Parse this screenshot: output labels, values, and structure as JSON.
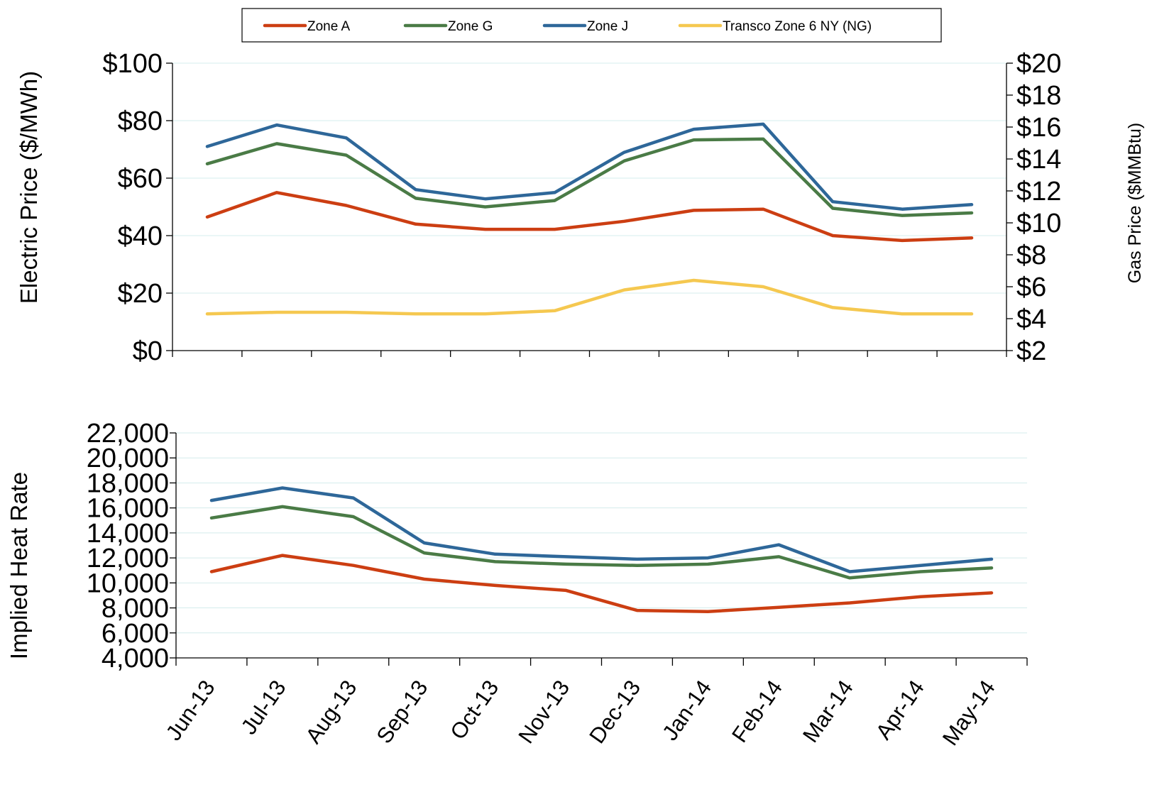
{
  "chart_data": [
    {
      "type": "line",
      "categories": [
        "Jun-13",
        "Jul-13",
        "Aug-13",
        "Sep-13",
        "Oct-13",
        "Nov-13",
        "Dec-13",
        "Jan-14",
        "Feb-14",
        "Mar-14",
        "Apr-14",
        "May-14"
      ],
      "ylabel": "Electric Price ($/MWh)",
      "ylim": [
        0,
        100
      ],
      "yticks": [
        "$0",
        "$20",
        "$40",
        "$60",
        "$80",
        "$100"
      ],
      "y2label": "Gas Price ($MMBtu)",
      "y2lim": [
        2,
        20
      ],
      "y2ticks": [
        "$2",
        "$4",
        "$6",
        "$8",
        "$10",
        "$12",
        "$14",
        "$16",
        "$18",
        "$20"
      ],
      "grid": true,
      "legend_position": "top",
      "series": [
        {
          "name": "Zone A",
          "axis": "left",
          "color": "#cc3e12",
          "values": [
            46.5,
            55,
            50.5,
            44,
            42.2,
            42.2,
            45,
            48.8,
            49.2,
            40,
            38.3,
            39.2
          ]
        },
        {
          "name": "Zone G",
          "axis": "left",
          "color": "#4a7b46",
          "values": [
            65,
            72,
            68,
            53,
            50,
            52.2,
            66,
            73.3,
            73.6,
            49.5,
            47,
            47.9
          ]
        },
        {
          "name": "Zone J",
          "axis": "left",
          "color": "#2e6799",
          "values": [
            71,
            78.5,
            74,
            56,
            52.8,
            55,
            69,
            77,
            78.8,
            51.8,
            49.2,
            50.8
          ]
        },
        {
          "name": "Transco Zone 6 NY (NG)",
          "axis": "right",
          "color": "#f5c850",
          "values": [
            4.3,
            4.4,
            4.4,
            4.3,
            4.3,
            4.5,
            5.8,
            6.4,
            6.0,
            4.7,
            4.3,
            4.3
          ]
        }
      ]
    },
    {
      "type": "line",
      "categories": [
        "Jun-13",
        "Jul-13",
        "Aug-13",
        "Sep-13",
        "Oct-13",
        "Nov-13",
        "Dec-13",
        "Jan-14",
        "Feb-14",
        "Mar-14",
        "Apr-14",
        "May-14"
      ],
      "ylabel": "Implied Heat Rate",
      "ylim": [
        4000,
        22000
      ],
      "yticks": [
        "4,000",
        "6,000",
        "8,000",
        "10,000",
        "12,000",
        "14,000",
        "16,000",
        "18,000",
        "20,000",
        "22,000"
      ],
      "grid": true,
      "series": [
        {
          "name": "Zone A",
          "color": "#cc3e12",
          "values": [
            10900,
            12200,
            11400,
            10300,
            9800,
            9400,
            7800,
            7700,
            8050,
            8400,
            8900,
            9200
          ]
        },
        {
          "name": "Zone G",
          "color": "#4a7b46",
          "values": [
            15200,
            16100,
            15300,
            12400,
            11700,
            11500,
            11400,
            11500,
            12100,
            10400,
            10900,
            11200
          ]
        },
        {
          "name": "Zone J",
          "color": "#2e6799",
          "values": [
            16600,
            17600,
            16800,
            13200,
            12300,
            12100,
            11900,
            12000,
            13050,
            10900,
            11400,
            11900
          ]
        }
      ]
    }
  ]
}
